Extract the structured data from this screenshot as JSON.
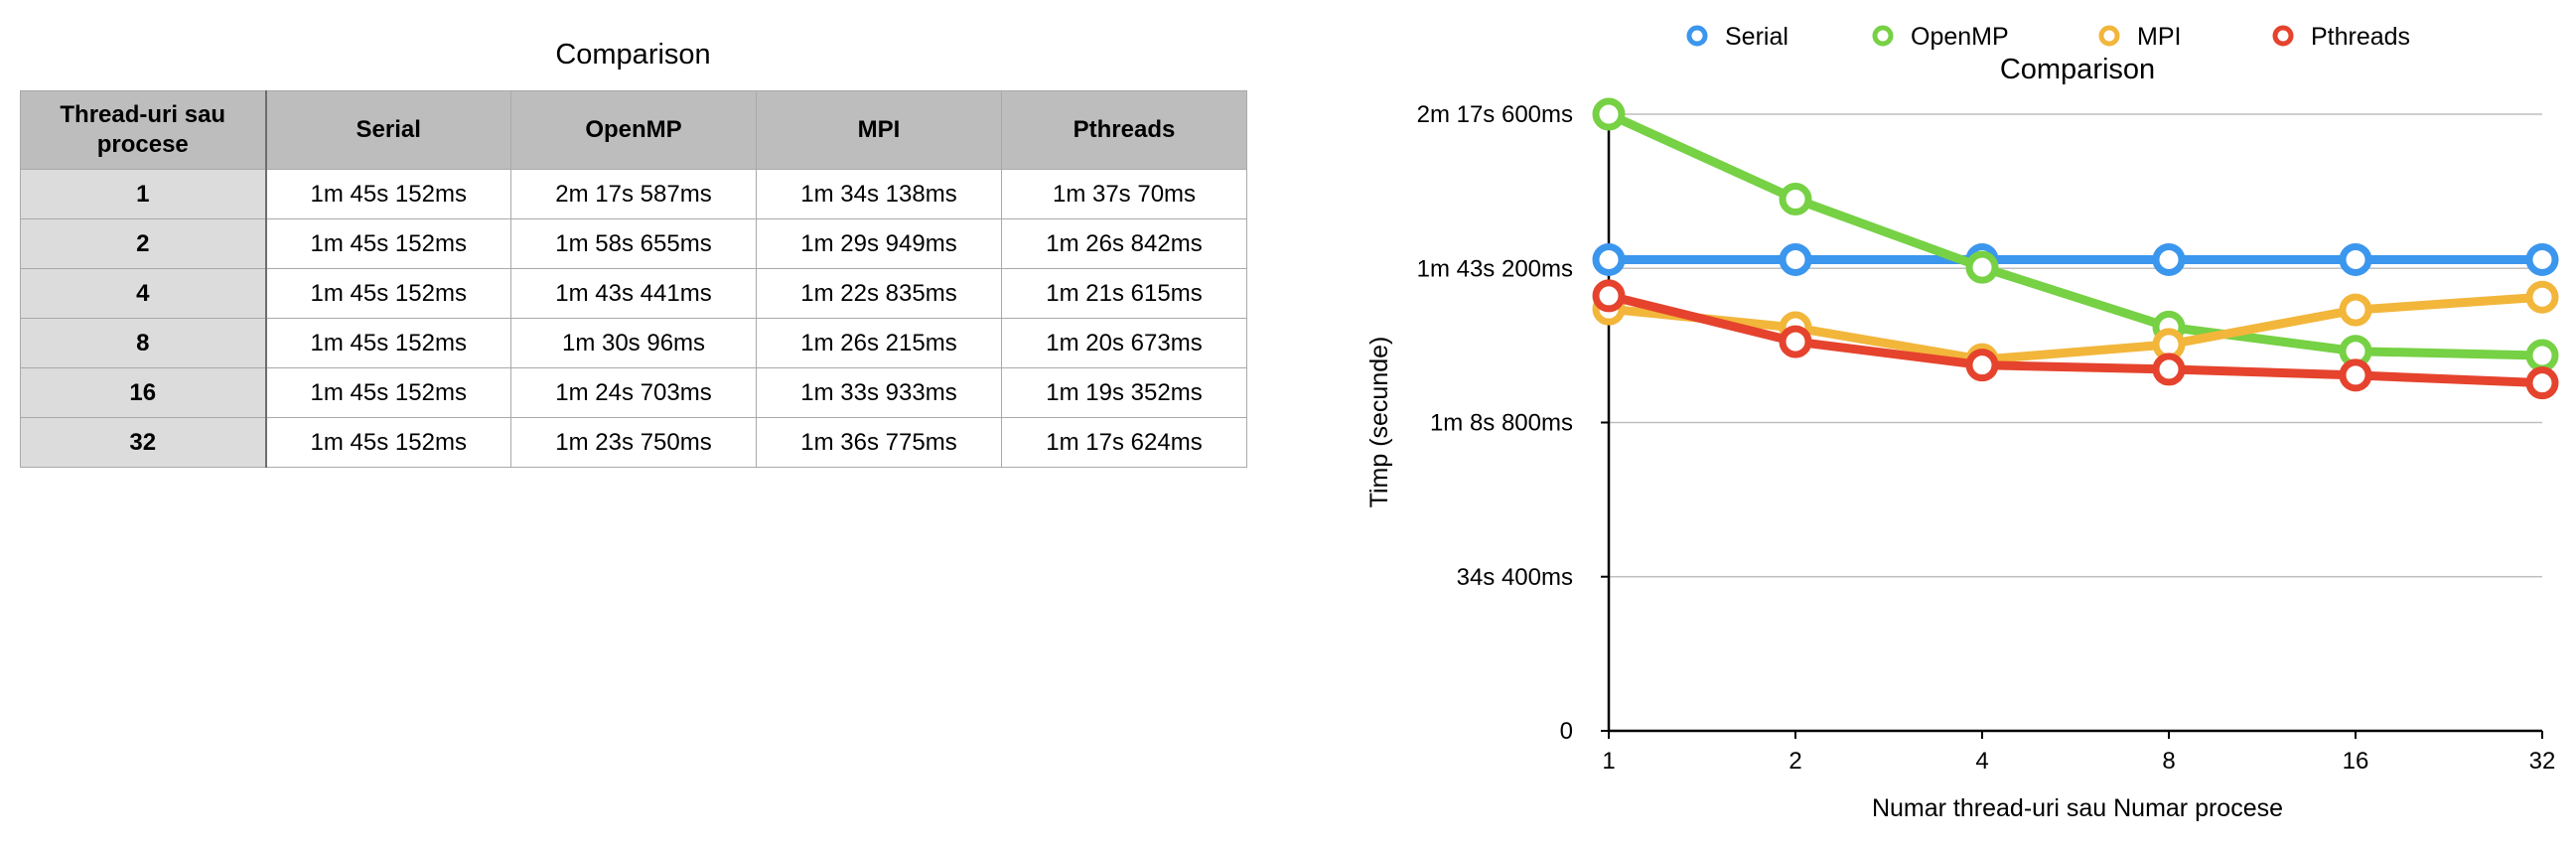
{
  "table": {
    "title": "Comparison",
    "headers": [
      "Thread-uri sau procese",
      "Serial",
      "OpenMP",
      "MPI",
      "Pthreads"
    ],
    "rows": [
      [
        "1",
        "1m 45s 152ms",
        "2m 17s 587ms",
        "1m 34s 138ms",
        "1m 37s 70ms"
      ],
      [
        "2",
        "1m 45s 152ms",
        "1m 58s 655ms",
        "1m 29s 949ms",
        "1m 26s 842ms"
      ],
      [
        "4",
        "1m 45s 152ms",
        "1m 43s 441ms",
        "1m 22s 835ms",
        "1m 21s 615ms"
      ],
      [
        "8",
        "1m 45s 152ms",
        "1m 30s 96ms",
        "1m 26s 215ms",
        "1m 20s 673ms"
      ],
      [
        "16",
        "1m 45s 152ms",
        "1m 24s 703ms",
        "1m 33s 933ms",
        "1m 19s 352ms"
      ],
      [
        "32",
        "1m 45s 152ms",
        "1m 23s 750ms",
        "1m 36s 775ms",
        "1m 17s 624ms"
      ]
    ]
  },
  "chart_data": {
    "type": "line",
    "title": "Comparison",
    "xlabel": "Numar thread-uri sau Numar procese",
    "ylabel": "Timp (secunde)",
    "categories": [
      "1",
      "2",
      "4",
      "8",
      "16",
      "32"
    ],
    "ylim": [
      0,
      137.6
    ],
    "yticks": [
      0,
      34.4,
      68.8,
      103.2,
      137.6
    ],
    "ytick_labels": [
      "0",
      "34s 400ms",
      "1m 8s 800ms",
      "1m 43s 200ms",
      "2m 17s 600ms"
    ],
    "grid": true,
    "legend_position": "top",
    "series": [
      {
        "name": "Serial",
        "color": "#3b96ee",
        "values": [
          105.152,
          105.152,
          105.152,
          105.152,
          105.152,
          105.152
        ]
      },
      {
        "name": "OpenMP",
        "color": "#76d144",
        "values": [
          137.587,
          118.655,
          103.441,
          90.096,
          84.703,
          83.75
        ]
      },
      {
        "name": "MPI",
        "color": "#f2b63b",
        "values": [
          94.138,
          89.949,
          82.835,
          86.215,
          93.933,
          96.775
        ]
      },
      {
        "name": "Pthreads",
        "color": "#e5432d",
        "values": [
          97.07,
          86.842,
          81.615,
          80.673,
          79.352,
          77.624
        ]
      }
    ]
  }
}
